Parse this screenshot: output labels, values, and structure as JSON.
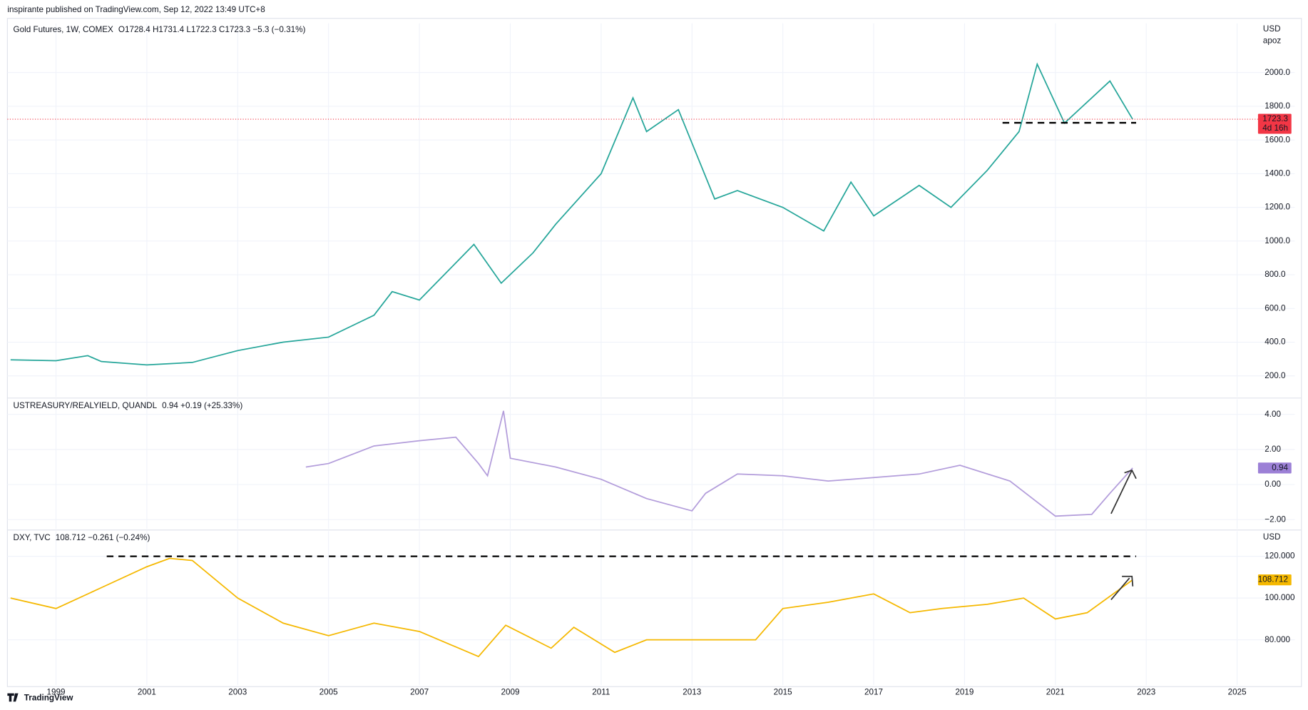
{
  "header": {
    "published": "inspirante published on TradingView.com, Sep 12, 2022 13:49 UTC+8",
    "brand": "TradingView"
  },
  "chart_data": [
    {
      "type": "line",
      "title": "Gold Futures, 1W, COMEX",
      "legend": "O1728.4 H1731.4 L1722.3 C1723.3 −5.3 (−0.31%)",
      "unit": "USD",
      "subunit": "apoz",
      "last_label": "1723.3",
      "countdown": "4d 16h",
      "color": "#26a69a",
      "x": [
        1998,
        1999,
        1999.7,
        2000,
        2001,
        2002,
        2003,
        2004,
        2005,
        2006,
        2006.4,
        2007,
        2008.2,
        2008.8,
        2009.5,
        2010,
        2011,
        2011.7,
        2012,
        2012.7,
        2013.5,
        2014,
        2015,
        2015.9,
        2016.5,
        2017,
        2018,
        2018.7,
        2019.5,
        2020.2,
        2020.6,
        2021.2,
        2021.6,
        2022.2,
        2022.7
      ],
      "values": [
        295,
        290,
        320,
        285,
        265,
        280,
        350,
        400,
        430,
        560,
        700,
        650,
        980,
        750,
        930,
        1100,
        1400,
        1850,
        1650,
        1780,
        1250,
        1300,
        1200,
        1060,
        1350,
        1150,
        1330,
        1200,
        1420,
        1650,
        2050,
        1700,
        1800,
        1950,
        1723.3
      ],
      "xlim": [
        1997.93,
        2025.35
      ],
      "ylim": [
        76,
        2292
      ],
      "yticks": [
        {
          "value": 200,
          "label": "200.0"
        },
        {
          "value": 400,
          "label": "400.0"
        },
        {
          "value": 600,
          "label": "600.0"
        },
        {
          "value": 800,
          "label": "800.0"
        },
        {
          "value": 1000,
          "label": "1000.0"
        },
        {
          "value": 1200,
          "label": "1200.0"
        },
        {
          "value": 1400,
          "label": "1400.0"
        },
        {
          "value": 1600,
          "label": "1600.0"
        },
        {
          "value": 1800,
          "label": "1800.0"
        },
        {
          "value": 2000,
          "label": "2000.0"
        }
      ],
      "tag_color": "#f23645",
      "legend_color": "#f23645"
    },
    {
      "type": "line",
      "title": "USTREASURY/REALYIELD, QUANDL",
      "legend": "0.94  +0.19 (+25.33%)",
      "last_label": "0.94",
      "color": "#b39ddb",
      "x": [
        2004.5,
        2005,
        2006,
        2007,
        2007.8,
        2008.3,
        2008.5,
        2008.85,
        2009,
        2010,
        2011,
        2012,
        2013,
        2013.3,
        2014,
        2015,
        2016,
        2017,
        2018,
        2018.9,
        2020,
        2020.6,
        2021,
        2021.8,
        2022.2,
        2022.7
      ],
      "values": [
        1.0,
        1.2,
        2.2,
        2.5,
        2.7,
        1.2,
        0.5,
        4.2,
        1.5,
        1.0,
        0.3,
        -0.8,
        -1.5,
        -0.5,
        0.6,
        0.5,
        0.2,
        0.4,
        0.6,
        1.1,
        0.2,
        -1.0,
        -1.8,
        -1.7,
        -0.5,
        0.94
      ],
      "xlim": [
        1997.93,
        2025.35
      ],
      "ylim": [
        -2.52,
        4.86
      ],
      "yticks": [
        {
          "value": -2,
          "label": "−2.00"
        },
        {
          "value": 0,
          "label": "0.00"
        },
        {
          "value": 2,
          "label": "2.00"
        },
        {
          "value": 4,
          "label": "4.00"
        }
      ],
      "tag_color": "#9c80d6",
      "legend_color": "#b39ddb"
    },
    {
      "type": "line",
      "title": "DXY, TVC",
      "legend": "108.712  −0.261 (−0.24%)",
      "unit": "USD",
      "last_label": "108.712",
      "color": "#f5b800",
      "x": [
        1998,
        1999,
        2000,
        2001,
        2001.5,
        2002,
        2003,
        2004,
        2005,
        2006,
        2007,
        2008.3,
        2008.9,
        2009.9,
        2010.4,
        2011.3,
        2012,
        2013,
        2014.4,
        2015,
        2016,
        2017,
        2017.8,
        2018.5,
        2019.5,
        2020.3,
        2021,
        2021.7,
        2022.7
      ],
      "values": [
        100,
        95,
        105,
        115,
        119,
        118,
        100,
        88,
        82,
        88,
        84,
        72,
        87,
        76,
        86,
        74,
        80,
        80,
        80,
        95,
        98,
        102,
        93,
        95,
        97,
        100,
        90,
        93,
        108.712
      ],
      "xlim": [
        1997.93,
        2025.35
      ],
      "ylim": [
        58.4,
        132
      ],
      "yticks": [
        {
          "value": 80,
          "label": "80.000"
        },
        {
          "value": 100,
          "label": "100.000"
        },
        {
          "value": 120,
          "label": "120.000"
        }
      ],
      "xticks": [
        1999,
        2001,
        2003,
        2005,
        2007,
        2009,
        2011,
        2013,
        2015,
        2017,
        2019,
        2021,
        2023,
        2025
      ],
      "tag_color": "#f5b800",
      "legend_color": "#f5b800"
    }
  ]
}
